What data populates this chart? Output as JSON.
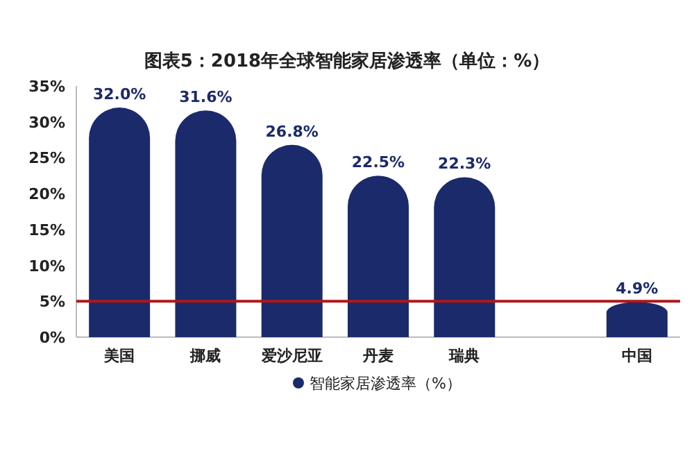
{
  "chart_data": {
    "type": "bar",
    "title": "图表5：2018年全球智能家居渗透率（单位：%）",
    "categories": [
      "美国",
      "挪威",
      "爱沙尼亚",
      "丹麦",
      "瑞典",
      null,
      "中国"
    ],
    "series": [
      {
        "name": "智能家居渗透率（%）",
        "color": "#1b2a6b",
        "values": [
          32.0,
          31.6,
          26.8,
          22.5,
          22.3,
          null,
          4.9
        ],
        "value_labels": [
          "32.0%",
          "31.6%",
          "26.8%",
          "22.5%",
          "22.3%",
          null,
          "4.9%"
        ]
      }
    ],
    "ylim": [
      0,
      35
    ],
    "yticks": [
      {
        "value": 0,
        "label": "0%"
      },
      {
        "value": 5,
        "label": "5%"
      },
      {
        "value": 10,
        "label": "10%"
      },
      {
        "value": 15,
        "label": "15%"
      },
      {
        "value": 20,
        "label": "20%"
      },
      {
        "value": 25,
        "label": "25%"
      },
      {
        "value": 30,
        "label": "30%"
      },
      {
        "value": 35,
        "label": "35%"
      }
    ],
    "ref_lines": [
      {
        "axis": "y",
        "value": 5,
        "color": "#b01818"
      }
    ],
    "legend": "bottom"
  }
}
